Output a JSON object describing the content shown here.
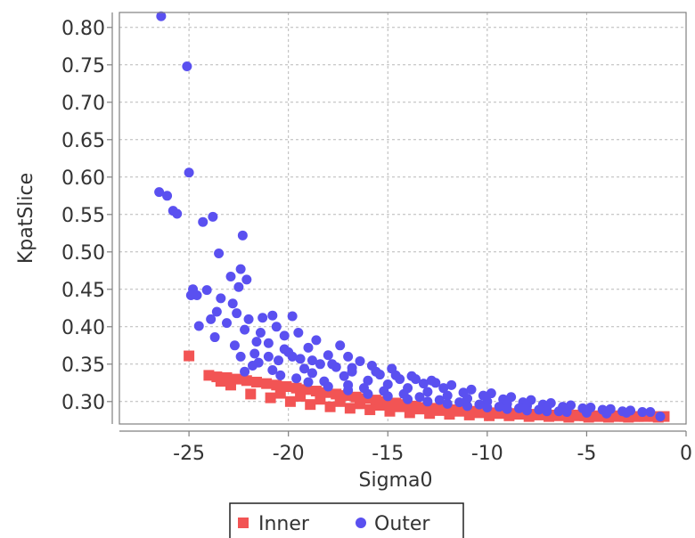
{
  "chart_data": {
    "type": "scatter",
    "title": "",
    "xlabel": "Sigma0",
    "ylabel": "KpatSlice",
    "xlim": [
      -28.5,
      0
    ],
    "ylim": [
      0.27,
      0.82
    ],
    "x_ticks": [
      -25,
      -20,
      -15,
      -10,
      -5,
      0
    ],
    "x_tick_labels": [
      "-25",
      "-20",
      "-15",
      "-10",
      "-5",
      "0"
    ],
    "y_ticks": [
      0.3,
      0.35,
      0.4,
      0.45,
      0.5,
      0.55,
      0.6,
      0.65,
      0.7,
      0.75,
      0.8
    ],
    "y_tick_labels": [
      "0.30",
      "0.35",
      "0.40",
      "0.45",
      "0.50",
      "0.55",
      "0.60",
      "0.65",
      "0.70",
      "0.75",
      "0.80"
    ],
    "grid": true,
    "legend_position": "bottom-center",
    "series": [
      {
        "name": "Inner",
        "marker": "square",
        "color": "#f25454",
        "points": [
          [
            -25.0,
            0.361
          ],
          [
            -24.0,
            0.335
          ],
          [
            -23.6,
            0.333
          ],
          [
            -23.1,
            0.332
          ],
          [
            -22.6,
            0.33
          ],
          [
            -22.1,
            0.328
          ],
          [
            -21.6,
            0.326
          ],
          [
            -21.1,
            0.324
          ],
          [
            -20.6,
            0.322
          ],
          [
            -20.1,
            0.32
          ],
          [
            -19.6,
            0.318
          ],
          [
            -19.1,
            0.316
          ],
          [
            -18.6,
            0.314
          ],
          [
            -18.1,
            0.312
          ],
          [
            -17.6,
            0.31
          ],
          [
            -17.1,
            0.308
          ],
          [
            -16.6,
            0.306
          ],
          [
            -16.1,
            0.304
          ],
          [
            -15.6,
            0.302
          ],
          [
            -15.1,
            0.3
          ],
          [
            -14.6,
            0.298
          ],
          [
            -14.1,
            0.296
          ],
          [
            -13.6,
            0.294
          ],
          [
            -13.1,
            0.292
          ],
          [
            -12.6,
            0.291
          ],
          [
            -12.1,
            0.29
          ],
          [
            -11.6,
            0.289
          ],
          [
            -11.1,
            0.288
          ],
          [
            -10.6,
            0.287
          ],
          [
            -10.1,
            0.286
          ],
          [
            -9.6,
            0.285
          ],
          [
            -9.1,
            0.285
          ],
          [
            -8.6,
            0.284
          ],
          [
            -8.1,
            0.284
          ],
          [
            -7.6,
            0.283
          ],
          [
            -7.1,
            0.283
          ],
          [
            -6.6,
            0.282
          ],
          [
            -6.1,
            0.282
          ],
          [
            -5.6,
            0.282
          ],
          [
            -5.1,
            0.281
          ],
          [
            -4.6,
            0.281
          ],
          [
            -4.1,
            0.281
          ],
          [
            -3.6,
            0.281
          ],
          [
            -3.1,
            0.28
          ],
          [
            -2.6,
            0.28
          ],
          [
            -2.1,
            0.28
          ],
          [
            -1.6,
            0.28
          ],
          [
            -1.1,
            0.28
          ],
          [
            -20.9,
            0.305
          ],
          [
            -21.9,
            0.31
          ],
          [
            -19.9,
            0.3
          ],
          [
            -18.9,
            0.296
          ],
          [
            -17.9,
            0.293
          ],
          [
            -16.9,
            0.291
          ],
          [
            -15.9,
            0.289
          ],
          [
            -14.9,
            0.287
          ],
          [
            -13.9,
            0.285
          ],
          [
            -12.9,
            0.284
          ],
          [
            -11.9,
            0.283
          ],
          [
            -10.9,
            0.282
          ],
          [
            -9.9,
            0.281
          ],
          [
            -8.9,
            0.281
          ],
          [
            -7.9,
            0.28
          ],
          [
            -6.9,
            0.28
          ],
          [
            -5.9,
            0.279
          ],
          [
            -4.9,
            0.279
          ],
          [
            -3.9,
            0.279
          ],
          [
            -2.9,
            0.279
          ],
          [
            -22.9,
            0.322
          ],
          [
            -23.4,
            0.327
          ],
          [
            -20.4,
            0.311
          ],
          [
            -19.4,
            0.307
          ],
          [
            -18.4,
            0.303
          ],
          [
            -17.4,
            0.3
          ],
          [
            -16.4,
            0.297
          ],
          [
            -15.4,
            0.295
          ],
          [
            -14.4,
            0.293
          ],
          [
            -13.4,
            0.29
          ],
          [
            -12.4,
            0.288
          ],
          [
            -11.4,
            0.287
          ],
          [
            -10.4,
            0.285
          ],
          [
            -9.4,
            0.284
          ],
          [
            -8.4,
            0.283
          ],
          [
            -7.4,
            0.282
          ],
          [
            -6.4,
            0.281
          ],
          [
            -5.4,
            0.281
          ],
          [
            -4.4,
            0.28
          ],
          [
            -3.4,
            0.28
          ],
          [
            -2.4,
            0.28
          ],
          [
            -1.4,
            0.279
          ]
        ]
      },
      {
        "name": "Outer",
        "marker": "circle",
        "color": "#5a50f0",
        "points": [
          [
            -26.4,
            0.815
          ],
          [
            -25.1,
            0.748
          ],
          [
            -25.0,
            0.606
          ],
          [
            -26.5,
            0.58
          ],
          [
            -26.1,
            0.575
          ],
          [
            -25.8,
            0.555
          ],
          [
            -25.6,
            0.551
          ],
          [
            -24.3,
            0.54
          ],
          [
            -23.8,
            0.547
          ],
          [
            -22.3,
            0.522
          ],
          [
            -23.5,
            0.498
          ],
          [
            -22.4,
            0.477
          ],
          [
            -22.9,
            0.467
          ],
          [
            -22.1,
            0.463
          ],
          [
            -24.8,
            0.45
          ],
          [
            -24.1,
            0.449
          ],
          [
            -22.5,
            0.453
          ],
          [
            -24.9,
            0.442
          ],
          [
            -23.4,
            0.438
          ],
          [
            -24.6,
            0.442
          ],
          [
            -22.8,
            0.431
          ],
          [
            -23.6,
            0.42
          ],
          [
            -22.6,
            0.418
          ],
          [
            -23.9,
            0.41
          ],
          [
            -24.5,
            0.401
          ],
          [
            -23.1,
            0.405
          ],
          [
            -22.0,
            0.41
          ],
          [
            -23.7,
            0.386
          ],
          [
            -21.3,
            0.412
          ],
          [
            -20.8,
            0.415
          ],
          [
            -19.8,
            0.414
          ],
          [
            -20.6,
            0.4
          ],
          [
            -21.4,
            0.392
          ],
          [
            -22.2,
            0.396
          ],
          [
            -19.5,
            0.392
          ],
          [
            -20.2,
            0.388
          ],
          [
            -21.0,
            0.378
          ],
          [
            -22.7,
            0.375
          ],
          [
            -18.6,
            0.382
          ],
          [
            -17.4,
            0.375
          ],
          [
            -19.0,
            0.372
          ],
          [
            -20.0,
            0.366
          ],
          [
            -21.7,
            0.364
          ],
          [
            -22.4,
            0.36
          ],
          [
            -18.0,
            0.362
          ],
          [
            -17.0,
            0.36
          ],
          [
            -19.4,
            0.357
          ],
          [
            -20.5,
            0.355
          ],
          [
            -21.5,
            0.352
          ],
          [
            -16.4,
            0.354
          ],
          [
            -18.4,
            0.35
          ],
          [
            -15.8,
            0.348
          ],
          [
            -17.6,
            0.346
          ],
          [
            -19.2,
            0.344
          ],
          [
            -20.8,
            0.342
          ],
          [
            -14.8,
            0.344
          ],
          [
            -16.8,
            0.34
          ],
          [
            -18.8,
            0.338
          ],
          [
            -15.4,
            0.336
          ],
          [
            -13.8,
            0.334
          ],
          [
            -17.2,
            0.334
          ],
          [
            -19.6,
            0.331
          ],
          [
            -14.4,
            0.33
          ],
          [
            -12.8,
            0.328
          ],
          [
            -16.0,
            0.328
          ],
          [
            -18.2,
            0.327
          ],
          [
            -13.2,
            0.324
          ],
          [
            -11.8,
            0.322
          ],
          [
            -15.0,
            0.323
          ],
          [
            -17.0,
            0.322
          ],
          [
            -12.2,
            0.318
          ],
          [
            -10.8,
            0.316
          ],
          [
            -14.0,
            0.318
          ],
          [
            -16.2,
            0.318
          ],
          [
            -11.2,
            0.312
          ],
          [
            -9.8,
            0.311
          ],
          [
            -13.0,
            0.313
          ],
          [
            -15.2,
            0.314
          ],
          [
            -10.2,
            0.308
          ],
          [
            -8.8,
            0.306
          ],
          [
            -12.0,
            0.308
          ],
          [
            -14.2,
            0.31
          ],
          [
            -9.2,
            0.303
          ],
          [
            -7.8,
            0.302
          ],
          [
            -11.0,
            0.304
          ],
          [
            -13.4,
            0.306
          ],
          [
            -8.2,
            0.299
          ],
          [
            -6.8,
            0.298
          ],
          [
            -10.0,
            0.3
          ],
          [
            -12.4,
            0.302
          ],
          [
            -7.2,
            0.296
          ],
          [
            -5.8,
            0.295
          ],
          [
            -9.0,
            0.297
          ],
          [
            -11.4,
            0.299
          ],
          [
            -6.2,
            0.293
          ],
          [
            -4.8,
            0.292
          ],
          [
            -8.0,
            0.294
          ],
          [
            -10.4,
            0.296
          ],
          [
            -5.2,
            0.291
          ],
          [
            -3.8,
            0.29
          ],
          [
            -7.0,
            0.292
          ],
          [
            -9.4,
            0.293
          ],
          [
            -4.2,
            0.289
          ],
          [
            -2.8,
            0.288
          ],
          [
            -6.0,
            0.29
          ],
          [
            -8.4,
            0.291
          ],
          [
            -3.2,
            0.287
          ],
          [
            -1.8,
            0.286
          ],
          [
            -5.0,
            0.288
          ],
          [
            -7.4,
            0.289
          ],
          [
            -2.2,
            0.286
          ],
          [
            -1.3,
            0.28
          ],
          [
            -4.0,
            0.287
          ],
          [
            -6.4,
            0.287
          ],
          [
            -3.0,
            0.285
          ],
          [
            -21.0,
            0.36
          ],
          [
            -21.8,
            0.348
          ],
          [
            -22.2,
            0.34
          ],
          [
            -20.4,
            0.335
          ],
          [
            -19.0,
            0.326
          ],
          [
            -18.0,
            0.32
          ],
          [
            -17.0,
            0.315
          ],
          [
            -16.0,
            0.31
          ],
          [
            -15.0,
            0.307
          ],
          [
            -14.0,
            0.303
          ],
          [
            -13.0,
            0.3
          ],
          [
            -12.0,
            0.297
          ],
          [
            -11.0,
            0.294
          ],
          [
            -10.0,
            0.292
          ],
          [
            -9.0,
            0.29
          ],
          [
            -8.0,
            0.288
          ],
          [
            -7.0,
            0.287
          ],
          [
            -6.0,
            0.286
          ],
          [
            -5.0,
            0.285
          ],
          [
            -4.0,
            0.284
          ],
          [
            -21.6,
            0.38
          ],
          [
            -20.2,
            0.37
          ],
          [
            -19.8,
            0.36
          ],
          [
            -18.8,
            0.355
          ],
          [
            -17.8,
            0.35
          ],
          [
            -16.8,
            0.345
          ],
          [
            -15.6,
            0.34
          ],
          [
            -14.6,
            0.335
          ],
          [
            -13.6,
            0.33
          ],
          [
            -12.6,
            0.325
          ]
        ]
      }
    ]
  }
}
